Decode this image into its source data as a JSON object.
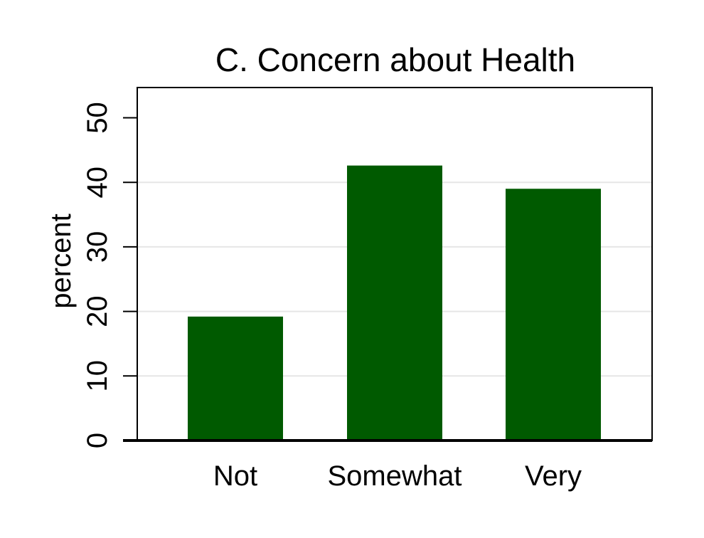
{
  "chart_data": {
    "type": "bar",
    "title": "C. Concern about Health",
    "xlabel": "",
    "ylabel": "percent",
    "categories": [
      "Not",
      "Somewhat",
      "Very"
    ],
    "values": [
      19.2,
      42.6,
      39.0
    ],
    "ylim": [
      0,
      55
    ],
    "yticks": [
      "0",
      "10",
      "20",
      "30",
      "40",
      "50"
    ],
    "grid": true,
    "legend": "none",
    "bar_color": "#005a00",
    "gridline_color": "#e6e6e6"
  }
}
